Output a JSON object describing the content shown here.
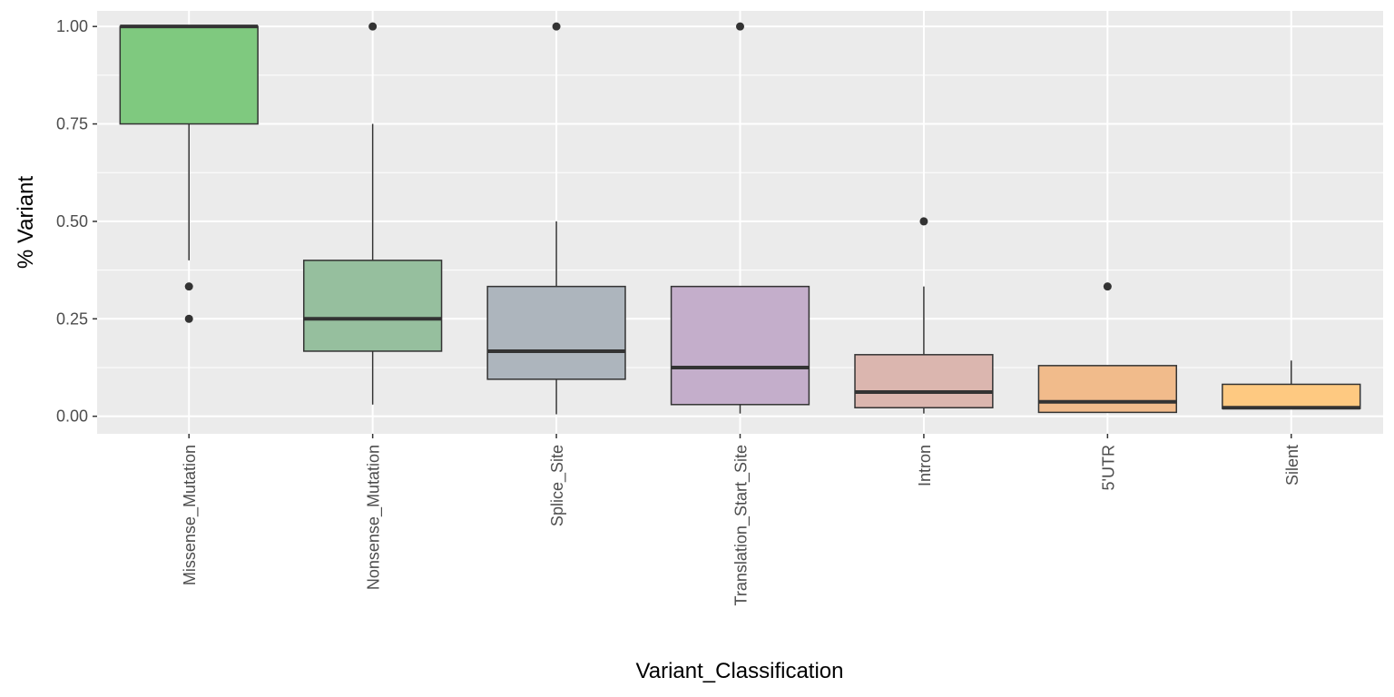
{
  "chart_data": {
    "type": "boxplot",
    "xlabel": "Variant_Classification",
    "ylabel": "% Variant",
    "ylim": [
      -0.045,
      1.04
    ],
    "yticks": [
      {
        "value": 0.0,
        "label": "0.00"
      },
      {
        "value": 0.25,
        "label": "0.25"
      },
      {
        "value": 0.5,
        "label": "0.50"
      },
      {
        "value": 0.75,
        "label": "0.75"
      },
      {
        "value": 1.0,
        "label": "1.00"
      }
    ],
    "grid": true,
    "legend": "none",
    "categories": [
      "Missense_Mutation",
      "Nonsense_Mutation",
      "Splice_Site",
      "Translation_Start_Site",
      "Intron",
      "5'UTR",
      "Silent"
    ],
    "boxes": [
      {
        "category": "Missense_Mutation",
        "color": "#7fc97f",
        "whisker_low": 0.4,
        "q1": 0.75,
        "median": 1.0,
        "q3": 1.0,
        "whisker_high": 1.0,
        "outliers": [
          0.333,
          0.25
        ]
      },
      {
        "category": "Nonsense_Mutation",
        "color": "#96bf9e",
        "whisker_low": 0.03,
        "q1": 0.167,
        "median": 0.25,
        "q3": 0.4,
        "whisker_high": 0.75,
        "outliers": [
          1.0
        ]
      },
      {
        "category": "Splice_Site",
        "color": "#adb5bd",
        "whisker_low": 0.005,
        "q1": 0.095,
        "median": 0.167,
        "q3": 0.333,
        "whisker_high": 0.5,
        "outliers": [
          1.0
        ]
      },
      {
        "category": "Translation_Start_Site",
        "color": "#c4aecb",
        "whisker_low": 0.007,
        "q1": 0.03,
        "median": 0.125,
        "q3": 0.333,
        "whisker_high": 0.333,
        "outliers": [
          1.0
        ]
      },
      {
        "category": "Intron",
        "color": "#dbb6af",
        "whisker_low": 0.007,
        "q1": 0.022,
        "median": 0.062,
        "q3": 0.158,
        "whisker_high": 0.333,
        "outliers": [
          0.5
        ]
      },
      {
        "category": "5'UTR",
        "color": "#f1bb8b",
        "whisker_low": 0.01,
        "q1": 0.01,
        "median": 0.037,
        "q3": 0.13,
        "whisker_high": 0.13,
        "outliers": [
          0.333
        ]
      },
      {
        "category": "Silent",
        "color": "#fec981",
        "whisker_low": 0.02,
        "q1": 0.02,
        "median": 0.022,
        "q3": 0.082,
        "whisker_high": 0.143,
        "outliers": []
      }
    ]
  }
}
